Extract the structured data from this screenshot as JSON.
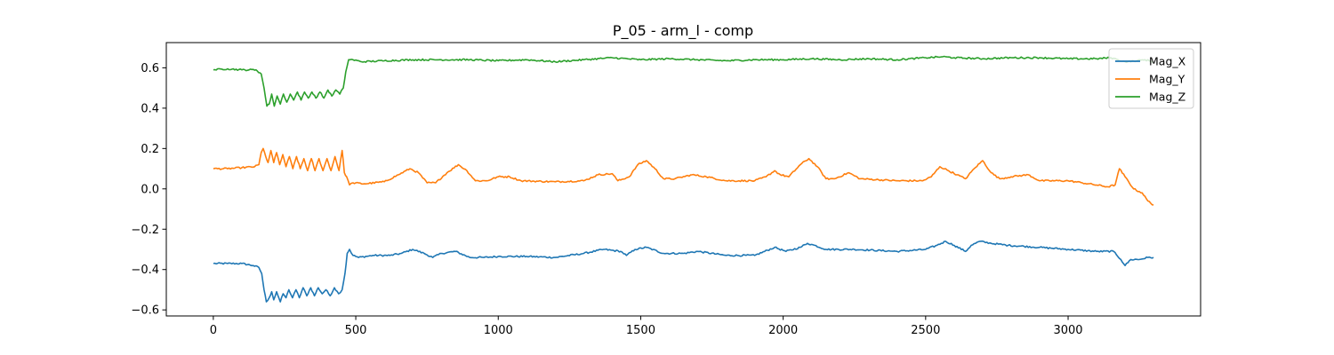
{
  "chart_data": {
    "type": "line",
    "title": "P_05 - arm_l - comp",
    "xlabel": "",
    "ylabel": "",
    "xlim": [
      -165,
      3465
    ],
    "ylim": [
      -0.63,
      0.725
    ],
    "x_ticks": [
      0,
      500,
      1000,
      1500,
      2000,
      2500,
      3000
    ],
    "x_tick_labels": [
      "0",
      "500",
      "1000",
      "1500",
      "2000",
      "2500",
      "3000"
    ],
    "y_ticks": [
      -0.6,
      -0.4,
      -0.2,
      0.0,
      0.2,
      0.4,
      0.6
    ],
    "y_tick_labels": [
      "−0.6",
      "−0.4",
      "−0.2",
      "0.0",
      "0.2",
      "0.4",
      "0.6"
    ],
    "grid": false,
    "legend_position": "top-right",
    "x_max": 3300,
    "series": [
      {
        "name": "Mag_X",
        "color": "#1f77b4",
        "points": [
          [
            0,
            -0.37
          ],
          [
            50,
            -0.37
          ],
          [
            100,
            -0.37
          ],
          [
            140,
            -0.38
          ],
          [
            160,
            -0.39
          ],
          [
            170,
            -0.42
          ],
          [
            178,
            -0.5
          ],
          [
            186,
            -0.56
          ],
          [
            196,
            -0.54
          ],
          [
            205,
            -0.51
          ],
          [
            212,
            -0.55
          ],
          [
            222,
            -0.51
          ],
          [
            235,
            -0.56
          ],
          [
            245,
            -0.52
          ],
          [
            255,
            -0.54
          ],
          [
            265,
            -0.5
          ],
          [
            278,
            -0.54
          ],
          [
            290,
            -0.5
          ],
          [
            302,
            -0.54
          ],
          [
            315,
            -0.49
          ],
          [
            328,
            -0.53
          ],
          [
            342,
            -0.49
          ],
          [
            355,
            -0.53
          ],
          [
            368,
            -0.49
          ],
          [
            382,
            -0.52
          ],
          [
            395,
            -0.5
          ],
          [
            410,
            -0.53
          ],
          [
            425,
            -0.49
          ],
          [
            440,
            -0.52
          ],
          [
            452,
            -0.5
          ],
          [
            462,
            -0.42
          ],
          [
            470,
            -0.32
          ],
          [
            478,
            -0.3
          ],
          [
            490,
            -0.33
          ],
          [
            510,
            -0.34
          ],
          [
            560,
            -0.33
          ],
          [
            620,
            -0.33
          ],
          [
            660,
            -0.32
          ],
          [
            700,
            -0.3
          ],
          [
            740,
            -0.32
          ],
          [
            770,
            -0.34
          ],
          [
            800,
            -0.32
          ],
          [
            850,
            -0.31
          ],
          [
            900,
            -0.34
          ],
          [
            950,
            -0.34
          ],
          [
            1000,
            -0.335
          ],
          [
            1100,
            -0.335
          ],
          [
            1200,
            -0.34
          ],
          [
            1300,
            -0.32
          ],
          [
            1370,
            -0.3
          ],
          [
            1430,
            -0.31
          ],
          [
            1450,
            -0.33
          ],
          [
            1480,
            -0.3
          ],
          [
            1520,
            -0.29
          ],
          [
            1580,
            -0.32
          ],
          [
            1650,
            -0.32
          ],
          [
            1700,
            -0.31
          ],
          [
            1800,
            -0.33
          ],
          [
            1900,
            -0.33
          ],
          [
            1970,
            -0.29
          ],
          [
            2010,
            -0.31
          ],
          [
            2060,
            -0.29
          ],
          [
            2085,
            -0.27
          ],
          [
            2110,
            -0.28
          ],
          [
            2150,
            -0.3
          ],
          [
            2250,
            -0.3
          ],
          [
            2400,
            -0.31
          ],
          [
            2500,
            -0.3
          ],
          [
            2540,
            -0.28
          ],
          [
            2570,
            -0.26
          ],
          [
            2600,
            -0.28
          ],
          [
            2640,
            -0.31
          ],
          [
            2660,
            -0.28
          ],
          [
            2690,
            -0.26
          ],
          [
            2730,
            -0.27
          ],
          [
            2790,
            -0.28
          ],
          [
            2900,
            -0.29
          ],
          [
            3000,
            -0.3
          ],
          [
            3100,
            -0.31
          ],
          [
            3160,
            -0.31
          ],
          [
            3185,
            -0.35
          ],
          [
            3200,
            -0.38
          ],
          [
            3220,
            -0.35
          ],
          [
            3250,
            -0.35
          ],
          [
            3280,
            -0.34
          ],
          [
            3300,
            -0.34
          ]
        ]
      },
      {
        "name": "Mag_Y",
        "color": "#ff7f0e",
        "points": [
          [
            0,
            0.1
          ],
          [
            50,
            0.1
          ],
          [
            100,
            0.105
          ],
          [
            145,
            0.11
          ],
          [
            160,
            0.12
          ],
          [
            168,
            0.18
          ],
          [
            175,
            0.2
          ],
          [
            184,
            0.16
          ],
          [
            192,
            0.13
          ],
          [
            202,
            0.19
          ],
          [
            212,
            0.13
          ],
          [
            222,
            0.18
          ],
          [
            233,
            0.12
          ],
          [
            244,
            0.17
          ],
          [
            255,
            0.11
          ],
          [
            267,
            0.16
          ],
          [
            279,
            0.1
          ],
          [
            292,
            0.16
          ],
          [
            305,
            0.1
          ],
          [
            318,
            0.15
          ],
          [
            331,
            0.09
          ],
          [
            344,
            0.15
          ],
          [
            357,
            0.09
          ],
          [
            371,
            0.15
          ],
          [
            385,
            0.09
          ],
          [
            399,
            0.15
          ],
          [
            413,
            0.09
          ],
          [
            427,
            0.16
          ],
          [
            441,
            0.09
          ],
          [
            452,
            0.19
          ],
          [
            460,
            0.08
          ],
          [
            468,
            0.06
          ],
          [
            478,
            0.02
          ],
          [
            490,
            0.03
          ],
          [
            530,
            0.025
          ],
          [
            600,
            0.035
          ],
          [
            650,
            0.07
          ],
          [
            690,
            0.1
          ],
          [
            720,
            0.08
          ],
          [
            750,
            0.03
          ],
          [
            780,
            0.03
          ],
          [
            820,
            0.08
          ],
          [
            860,
            0.12
          ],
          [
            890,
            0.09
          ],
          [
            920,
            0.04
          ],
          [
            960,
            0.04
          ],
          [
            1000,
            0.06
          ],
          [
            1040,
            0.06
          ],
          [
            1080,
            0.04
          ],
          [
            1200,
            0.035
          ],
          [
            1300,
            0.04
          ],
          [
            1350,
            0.07
          ],
          [
            1400,
            0.075
          ],
          [
            1420,
            0.04
          ],
          [
            1460,
            0.06
          ],
          [
            1490,
            0.12
          ],
          [
            1520,
            0.14
          ],
          [
            1550,
            0.1
          ],
          [
            1580,
            0.05
          ],
          [
            1620,
            0.05
          ],
          [
            1680,
            0.07
          ],
          [
            1730,
            0.06
          ],
          [
            1800,
            0.04
          ],
          [
            1900,
            0.04
          ],
          [
            1940,
            0.06
          ],
          [
            1970,
            0.09
          ],
          [
            1990,
            0.07
          ],
          [
            2020,
            0.06
          ],
          [
            2060,
            0.12
          ],
          [
            2090,
            0.15
          ],
          [
            2120,
            0.11
          ],
          [
            2150,
            0.05
          ],
          [
            2180,
            0.05
          ],
          [
            2230,
            0.08
          ],
          [
            2270,
            0.05
          ],
          [
            2400,
            0.04
          ],
          [
            2490,
            0.04
          ],
          [
            2520,
            0.06
          ],
          [
            2550,
            0.11
          ],
          [
            2580,
            0.09
          ],
          [
            2610,
            0.07
          ],
          [
            2640,
            0.05
          ],
          [
            2670,
            0.1
          ],
          [
            2700,
            0.14
          ],
          [
            2730,
            0.08
          ],
          [
            2760,
            0.05
          ],
          [
            2800,
            0.06
          ],
          [
            2860,
            0.07
          ],
          [
            2900,
            0.04
          ],
          [
            3000,
            0.04
          ],
          [
            3050,
            0.03
          ],
          [
            3140,
            0.01
          ],
          [
            3165,
            0.02
          ],
          [
            3180,
            0.1
          ],
          [
            3200,
            0.06
          ],
          [
            3230,
            0.0
          ],
          [
            3260,
            -0.02
          ],
          [
            3280,
            -0.06
          ],
          [
            3300,
            -0.08
          ]
        ]
      },
      {
        "name": "Mag_Z",
        "color": "#2ca02c",
        "points": [
          [
            0,
            0.59
          ],
          [
            50,
            0.595
          ],
          [
            100,
            0.59
          ],
          [
            150,
            0.59
          ],
          [
            168,
            0.57
          ],
          [
            178,
            0.5
          ],
          [
            188,
            0.41
          ],
          [
            196,
            0.42
          ],
          [
            205,
            0.47
          ],
          [
            214,
            0.41
          ],
          [
            224,
            0.46
          ],
          [
            235,
            0.42
          ],
          [
            246,
            0.47
          ],
          [
            258,
            0.43
          ],
          [
            270,
            0.47
          ],
          [
            282,
            0.44
          ],
          [
            295,
            0.48
          ],
          [
            308,
            0.44
          ],
          [
            320,
            0.48
          ],
          [
            333,
            0.45
          ],
          [
            346,
            0.48
          ],
          [
            360,
            0.45
          ],
          [
            374,
            0.48
          ],
          [
            388,
            0.45
          ],
          [
            402,
            0.49
          ],
          [
            416,
            0.46
          ],
          [
            430,
            0.49
          ],
          [
            444,
            0.47
          ],
          [
            456,
            0.5
          ],
          [
            465,
            0.58
          ],
          [
            475,
            0.64
          ],
          [
            490,
            0.64
          ],
          [
            520,
            0.63
          ],
          [
            600,
            0.635
          ],
          [
            700,
            0.64
          ],
          [
            800,
            0.64
          ],
          [
            900,
            0.64
          ],
          [
            1000,
            0.635
          ],
          [
            1100,
            0.64
          ],
          [
            1200,
            0.63
          ],
          [
            1300,
            0.64
          ],
          [
            1400,
            0.65
          ],
          [
            1500,
            0.64
          ],
          [
            1600,
            0.645
          ],
          [
            1700,
            0.64
          ],
          [
            1800,
            0.635
          ],
          [
            1900,
            0.64
          ],
          [
            2000,
            0.64
          ],
          [
            2100,
            0.645
          ],
          [
            2200,
            0.64
          ],
          [
            2300,
            0.645
          ],
          [
            2400,
            0.64
          ],
          [
            2500,
            0.65
          ],
          [
            2560,
            0.655
          ],
          [
            2600,
            0.65
          ],
          [
            2700,
            0.645
          ],
          [
            2800,
            0.65
          ],
          [
            2900,
            0.65
          ],
          [
            3000,
            0.645
          ],
          [
            3100,
            0.645
          ],
          [
            3150,
            0.65
          ],
          [
            3175,
            0.64
          ],
          [
            3200,
            0.63
          ],
          [
            3240,
            0.635
          ],
          [
            3270,
            0.64
          ],
          [
            3300,
            0.63
          ]
        ]
      }
    ]
  }
}
